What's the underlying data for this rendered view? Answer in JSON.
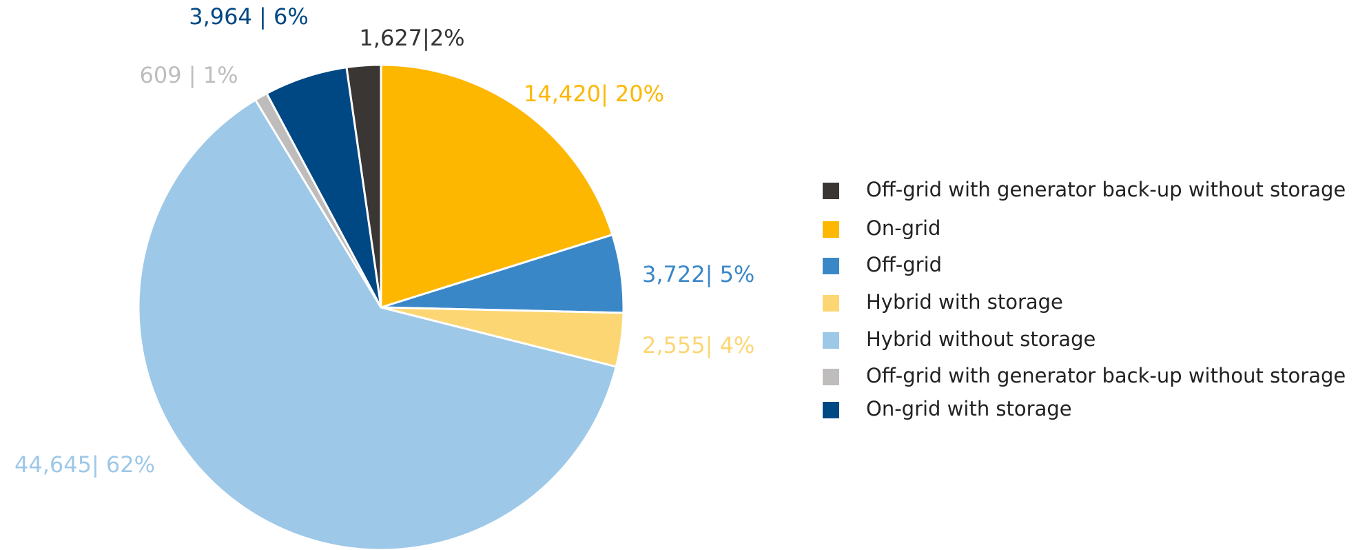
{
  "chart_data": {
    "type": "pie",
    "categories": [
      "Off-grid with generator back-up without storage",
      "On-grid",
      "Off-grid",
      "Hybrid with storage",
      "Hybrid without storage",
      "Off-grid with generator back-up without storage",
      "On-grid with storage"
    ],
    "values": [
      1627,
      14420,
      3722,
      2555,
      44645,
      609,
      3964
    ],
    "value_labels": [
      "1,627|2%",
      "14,420| 20%",
      "3,722| 5%",
      "2,555| 4%",
      "44,645| 62%",
      "609 | 1%",
      "3,964 | 6%"
    ],
    "colors": [
      "#3a3634",
      "#fdb700",
      "#3a87c8",
      "#fcd672",
      "#9dc8e8",
      "#bfbcbc",
      "#004884"
    ],
    "legend": "right"
  }
}
